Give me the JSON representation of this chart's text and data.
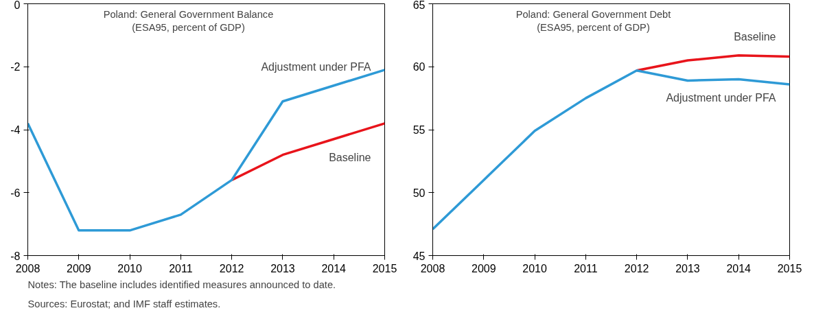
{
  "chart_data": [
    {
      "type": "line",
      "title": "Poland: General Government Balance\n(ESA95, percent of GDP)",
      "x": [
        2008,
        2009,
        2010,
        2011,
        2012,
        2013,
        2014,
        2015
      ],
      "xlim": [
        2008,
        2015
      ],
      "xticks": [
        2008,
        2009,
        2010,
        2011,
        2012,
        2013,
        2014,
        2015
      ],
      "ylim": [
        -8,
        0
      ],
      "yticks": [
        -8,
        -6,
        -4,
        -2,
        0
      ],
      "grid": false,
      "legend": false,
      "marker": "none",
      "series": [
        {
          "name": "Baseline",
          "color": "#e8141b",
          "values": [
            null,
            null,
            null,
            null,
            -5.6,
            -4.8,
            -4.3,
            -3.8
          ]
        },
        {
          "name": "Adjustment under PFA",
          "color": "#2e9ad6",
          "values": [
            -3.8,
            -7.2,
            -7.2,
            -6.7,
            -5.6,
            -3.1,
            -2.6,
            -2.1
          ]
        }
      ],
      "annotations": [
        "Notes: The baseline includes identified measures announced to date.",
        "Sources: Eurostat; and IMF staff estimates."
      ]
    },
    {
      "type": "line",
      "title": "Poland: General Government Debt\n(ESA95, percent of GDP)",
      "x": [
        2008,
        2009,
        2010,
        2011,
        2012,
        2013,
        2014,
        2015
      ],
      "xlim": [
        2008,
        2015
      ],
      "xticks": [
        2008,
        2009,
        2010,
        2011,
        2012,
        2013,
        2014,
        2015
      ],
      "ylim": [
        45,
        65
      ],
      "yticks": [
        45,
        50,
        55,
        60,
        65
      ],
      "grid": false,
      "legend": false,
      "marker": "none",
      "series": [
        {
          "name": "Baseline",
          "color": "#e8141b",
          "values": [
            null,
            null,
            null,
            null,
            59.7,
            60.5,
            60.9,
            60.8
          ]
        },
        {
          "name": "Adjustment under PFA",
          "color": "#2e9ad6",
          "values": [
            47.1,
            51.0,
            54.9,
            57.5,
            59.7,
            58.9,
            59.0,
            58.6
          ]
        }
      ]
    }
  ]
}
